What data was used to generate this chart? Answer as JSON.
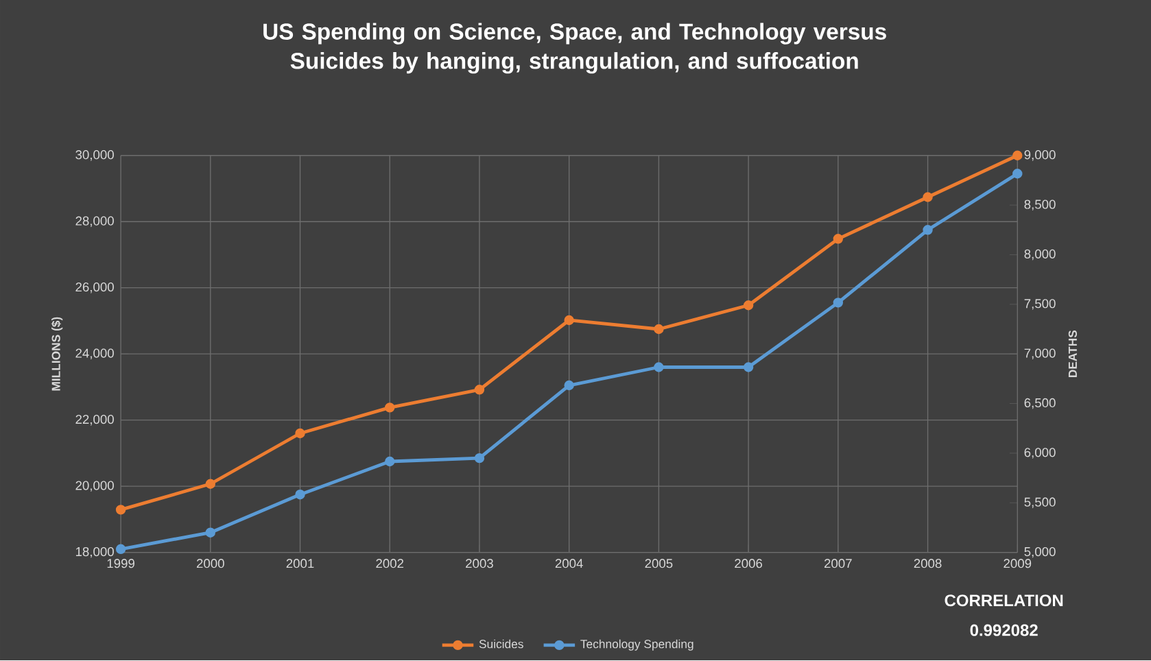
{
  "chart_data": {
    "type": "line",
    "title": "US Spending on Science, Space, and Technology versus Suicides by hanging, strangulation, and suffocation",
    "categories": [
      "1999",
      "2000",
      "2001",
      "2002",
      "2003",
      "2004",
      "2005",
      "2006",
      "2007",
      "2008",
      "2009"
    ],
    "series": [
      {
        "name": "Suicides",
        "color": "#ed7d31",
        "axis": "y2",
        "values": [
          5430,
          5690,
          6200,
          6460,
          6640,
          7340,
          7250,
          7490,
          8160,
          8580,
          9000
        ]
      },
      {
        "name": "Technology Spending",
        "color": "#5b9bd5",
        "values": [
          18100,
          18600,
          19750,
          20750,
          20850,
          23050,
          23600,
          23600,
          25550,
          27750,
          29450
        ]
      }
    ],
    "ylabel": "MILLIONS ($)",
    "y2label": "DEATHS",
    "ylim": [
      18000,
      30000
    ],
    "yticks": [
      {
        "value": 18000,
        "label": "18,000"
      },
      {
        "value": 20000,
        "label": "20,000"
      },
      {
        "value": 22000,
        "label": "22,000"
      },
      {
        "value": 24000,
        "label": "24,000"
      },
      {
        "value": 26000,
        "label": "26,000"
      },
      {
        "value": 28000,
        "label": "28,000"
      },
      {
        "value": 30000,
        "label": "30,000"
      }
    ],
    "y2lim": [
      5000,
      9000
    ],
    "y2ticks": [
      {
        "value": 5000,
        "label": "5,000"
      },
      {
        "value": 5500,
        "label": "5,500"
      },
      {
        "value": 6000,
        "label": "6,000"
      },
      {
        "value": 6500,
        "label": "6,500"
      },
      {
        "value": 7000,
        "label": "7,000"
      },
      {
        "value": 7500,
        "label": "7,500"
      },
      {
        "value": 8000,
        "label": "8,000"
      },
      {
        "value": 8500,
        "label": "8,500"
      },
      {
        "value": 9000,
        "label": "9,000"
      }
    ],
    "annotations": [
      "CORRELATION",
      "0.992082"
    ],
    "grid": true,
    "legend": "bottom",
    "marker": "circle",
    "line_style": "solid"
  }
}
